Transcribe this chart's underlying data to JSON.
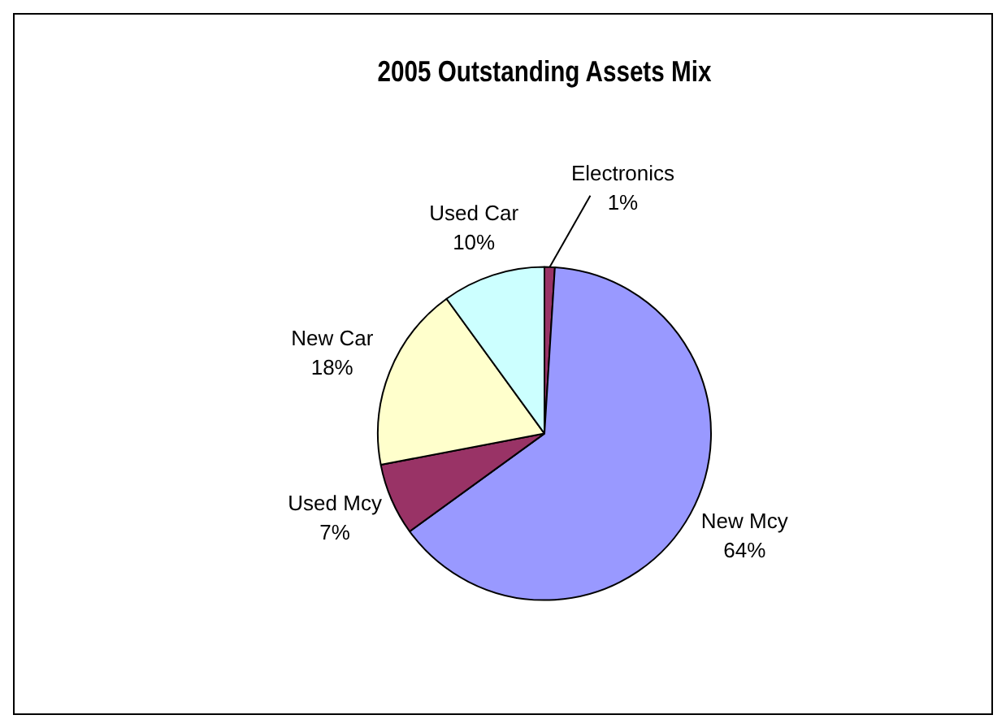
{
  "chart_data": {
    "type": "pie",
    "title": "2005 Outstanding Assets Mix",
    "categories": [
      "Electronics",
      "New Mcy",
      "Used Mcy",
      "New Car",
      "Used Car"
    ],
    "values": [
      1,
      64,
      7,
      18,
      10
    ],
    "value_labels": [
      "1%",
      "64%",
      "7%",
      "18%",
      "10%"
    ],
    "colors": [
      "#993366",
      "#9999ff",
      "#993366",
      "#ffffcc",
      "#ccffff"
    ],
    "legend": false
  }
}
